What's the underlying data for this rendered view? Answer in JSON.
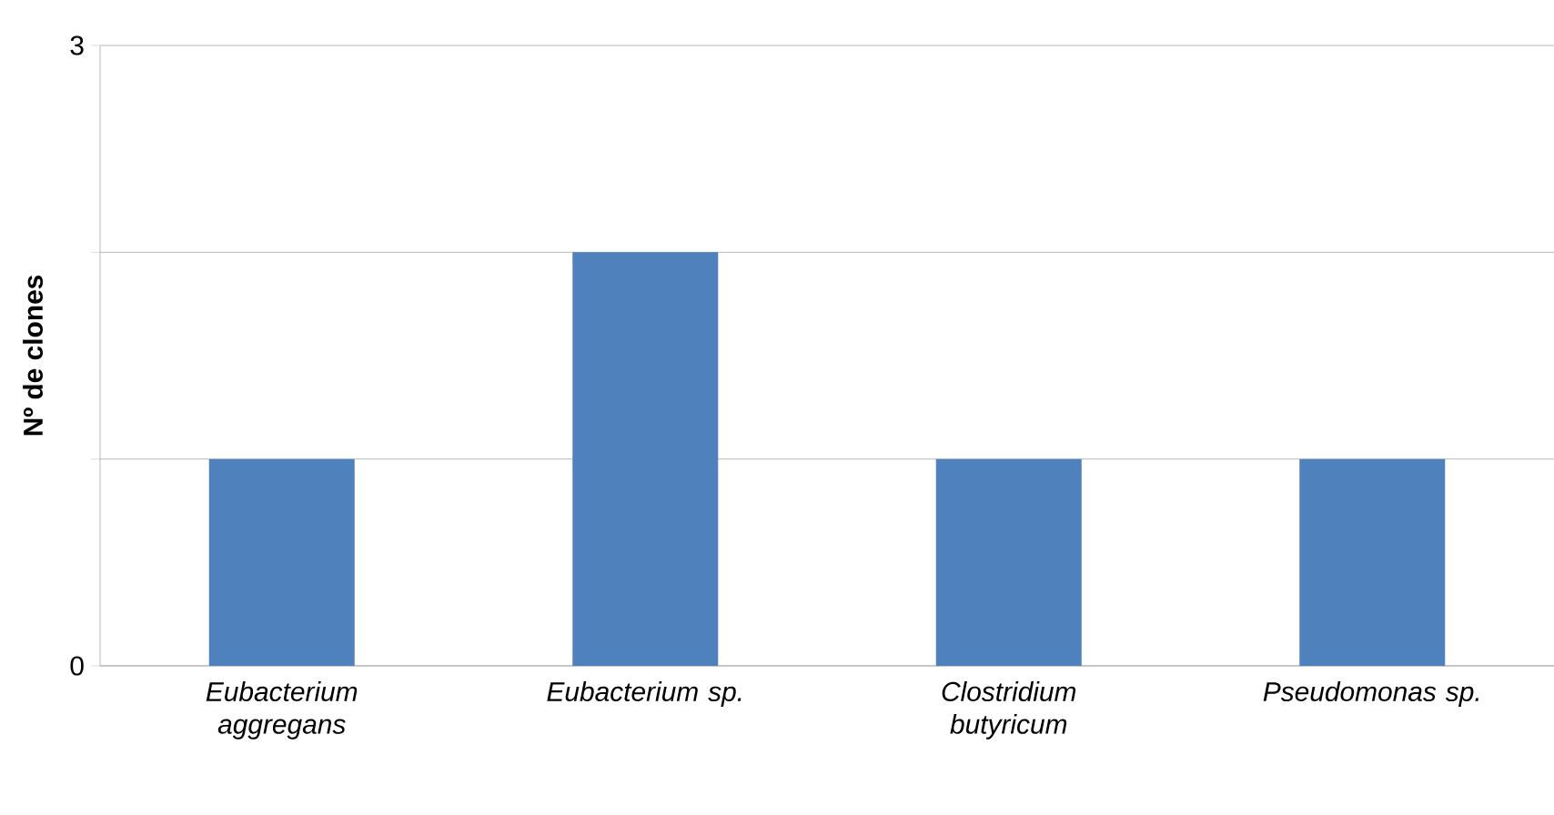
{
  "chart_data": {
    "type": "bar",
    "ylabel": "Nº de clones",
    "categories": [
      "Eubacterium aggregans",
      "Eubacterium sp.",
      "Clostridium butyricum",
      "Pseudomonas sp."
    ],
    "values": [
      1,
      2,
      1,
      1
    ],
    "color": "#4f81bd",
    "ylim": [
      0,
      3
    ],
    "yticks": [
      0,
      {
        "value": 1,
        "label": null
      },
      {
        "value": 2,
        "label": null
      },
      3
    ],
    "grid": "y"
  }
}
